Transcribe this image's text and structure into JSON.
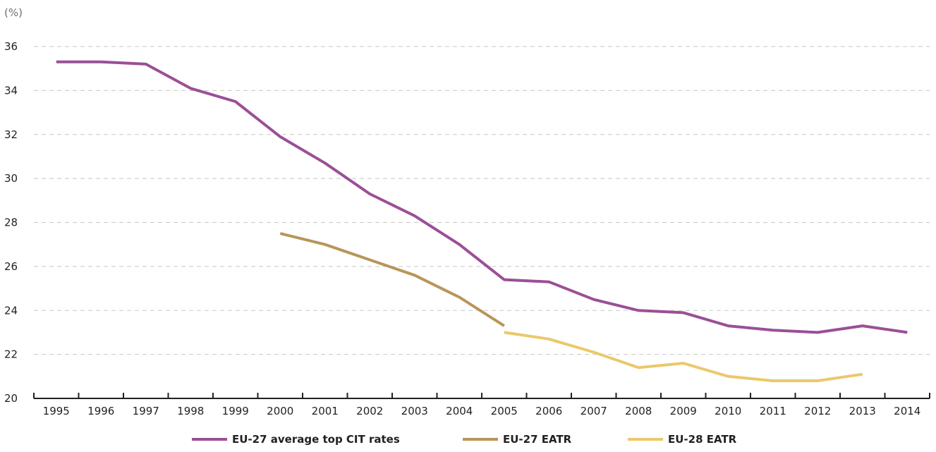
{
  "chart_data": {
    "type": "line",
    "ylabel": "(%)",
    "ylim": [
      20,
      36
    ],
    "yticks": [
      20,
      22,
      24,
      26,
      28,
      30,
      32,
      34,
      36
    ],
    "categories": [
      "1995",
      "1996",
      "1997",
      "1998",
      "1999",
      "2000",
      "2001",
      "2002",
      "2003",
      "2004",
      "2005",
      "2006",
      "2007",
      "2008",
      "2009",
      "2010",
      "2011",
      "2012",
      "2013",
      "2014"
    ],
    "grid": true,
    "legend_position": "bottom",
    "series": [
      {
        "name": "EU-27 average top CIT rates",
        "color": "#9b4f96",
        "values": [
          35.3,
          35.3,
          35.2,
          34.1,
          33.5,
          31.9,
          30.7,
          29.3,
          28.3,
          27.0,
          25.4,
          25.3,
          24.5,
          24.0,
          23.9,
          23.3,
          23.1,
          23.0,
          23.3,
          23.0
        ]
      },
      {
        "name": "EU-27 EATR",
        "color": "#b8955a",
        "values": [
          null,
          null,
          null,
          null,
          null,
          27.5,
          27.0,
          26.3,
          25.6,
          24.6,
          23.3,
          null,
          null,
          null,
          null,
          null,
          null,
          null,
          null,
          null
        ]
      },
      {
        "name": "EU-28 EATR",
        "color": "#ebc86b",
        "values": [
          null,
          null,
          null,
          null,
          null,
          null,
          null,
          null,
          null,
          null,
          23.0,
          22.7,
          22.1,
          21.4,
          21.6,
          21.0,
          20.8,
          20.8,
          21.1,
          null
        ]
      }
    ]
  }
}
